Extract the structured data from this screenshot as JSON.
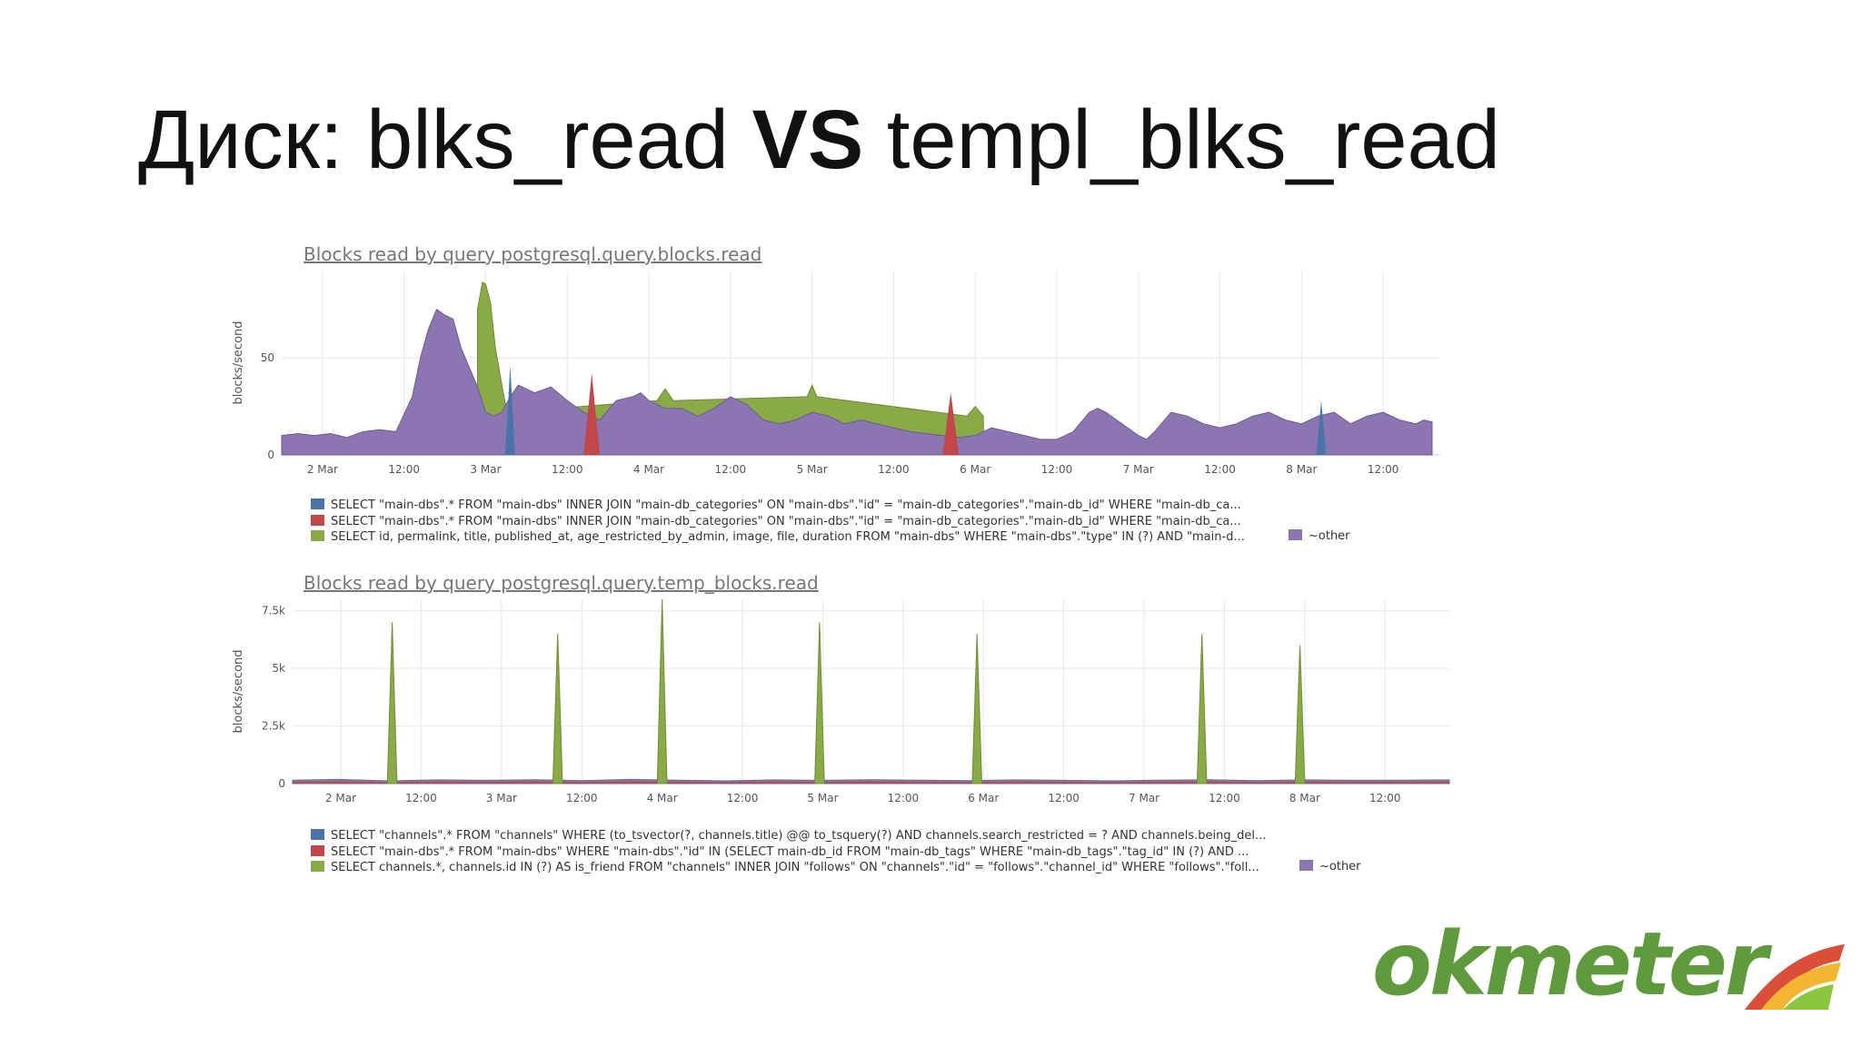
{
  "slide": {
    "title_prefix": "Диск: blks_read ",
    "title_vs": "VS",
    "title_suffix": " templ_blks_read",
    "logo_text": "okmeter"
  },
  "colors": {
    "blue": "#4a73aa",
    "red": "#c04848",
    "green": "#8aaa48",
    "purple": "#8b76b2",
    "grid": "#e8e8ee",
    "logo_green": "#5f9a3c"
  },
  "chart_data": [
    {
      "type": "area",
      "title": "Blocks read by query postgresql.query.blocks.read",
      "ylabel": "blocks/second",
      "xlabel": "",
      "ylim": [
        0,
        95
      ],
      "yticks": [
        0,
        50
      ],
      "ytick_labels": [
        "0",
        "50"
      ],
      "grid": true,
      "x_tick_labels": [
        "2 Mar",
        "12:00",
        "3 Mar",
        "12:00",
        "4 Mar",
        "12:00",
        "5 Mar",
        "12:00",
        "6 Mar",
        "12:00",
        "7 Mar",
        "12:00",
        "8 Mar",
        "12:00"
      ],
      "x_range_days": [
        1.75,
        8.85
      ],
      "legend": [
        {
          "color": "#4a73aa",
          "label": "SELECT \"main-dbs\".* FROM \"main-dbs\" INNER JOIN \"main-db_categories\" ON \"main-dbs\".\"id\" = \"main-db_categories\".\"main-db_id\" WHERE \"main-db_ca..."
        },
        {
          "color": "#c04848",
          "label": "SELECT \"main-dbs\".* FROM \"main-dbs\" INNER JOIN \"main-db_categories\" ON \"main-dbs\".\"id\" = \"main-db_categories\".\"main-db_id\" WHERE \"main-db_ca..."
        },
        {
          "color": "#8aaa48",
          "label": "SELECT id, permalink, title, published_at, age_restricted_by_admin, image, file, duration FROM \"main-dbs\" WHERE \"main-dbs\".\"type\" IN (?) AND \"main-d..."
        }
      ],
      "legend_other": {
        "color": "#8b76b2",
        "label": "~other"
      },
      "other_series": {
        "x": [
          1.75,
          1.85,
          1.95,
          2.05,
          2.15,
          2.25,
          2.35,
          2.45,
          2.55,
          2.6,
          2.65,
          2.7,
          2.75,
          2.8,
          2.85,
          2.9,
          2.95,
          3.0,
          3.05,
          3.1,
          3.15,
          3.2,
          3.3,
          3.4,
          3.5,
          3.6,
          3.7,
          3.8,
          3.9,
          3.95,
          4.0,
          4.1,
          4.2,
          4.25,
          4.3,
          4.4,
          4.5,
          4.6,
          4.7,
          4.8,
          4.9,
          5.0,
          5.1,
          5.2,
          5.3,
          5.4,
          5.5,
          5.6,
          5.7,
          5.8,
          5.9,
          6.0,
          6.1,
          6.2,
          6.3,
          6.4,
          6.5,
          6.6,
          6.7,
          6.75,
          6.8,
          6.9,
          7.0,
          7.05,
          7.1,
          7.2,
          7.3,
          7.4,
          7.5,
          7.6,
          7.7,
          7.8,
          7.9,
          8.0,
          8.1,
          8.2,
          8.3,
          8.4,
          8.5,
          8.6,
          8.7,
          8.75,
          8.8
        ],
        "values": [
          10,
          11,
          10,
          11,
          9,
          12,
          13,
          12,
          30,
          50,
          65,
          75,
          72,
          70,
          55,
          45,
          35,
          22,
          20,
          22,
          30,
          36,
          32,
          35,
          28,
          22,
          18,
          28,
          30,
          32,
          28,
          24,
          24,
          22,
          20,
          24,
          30,
          26,
          18,
          16,
          18,
          22,
          20,
          16,
          18,
          16,
          14,
          12,
          11,
          10,
          9,
          10,
          14,
          12,
          10,
          8,
          8,
          12,
          22,
          24,
          22,
          16,
          10,
          8,
          12,
          22,
          20,
          16,
          14,
          16,
          20,
          22,
          18,
          16,
          20,
          22,
          16,
          20,
          22,
          18,
          16,
          18,
          17
        ]
      },
      "green_series": {
        "x": [
          2.95,
          2.98,
          3.0,
          3.03,
          3.06,
          3.1,
          3.13,
          4.05,
          4.1,
          4.15,
          4.97,
          5.0,
          5.03,
          5.95,
          6.0,
          6.05
        ],
        "values": [
          75,
          89,
          88,
          78,
          55,
          36,
          22,
          28,
          34,
          28,
          30,
          36,
          30,
          20,
          25,
          20
        ]
      },
      "red_spikes": [
        {
          "x": 3.65,
          "peak": 42
        },
        {
          "x": 5.85,
          "peak": 32
        }
      ],
      "blue_spikes": [
        {
          "x": 3.15,
          "peak": 46
        },
        {
          "x": 8.12,
          "peak": 28
        }
      ]
    },
    {
      "type": "area",
      "title": "Blocks read by query postgresql.query.temp_blocks.read",
      "ylabel": "blocks/second",
      "xlabel": "",
      "ylim": [
        0,
        8000
      ],
      "yticks": [
        0,
        2500,
        5000,
        7500
      ],
      "ytick_labels": [
        "0",
        "2.5k",
        "5k",
        "7.5k"
      ],
      "grid": true,
      "x_tick_labels": [
        "2 Mar",
        "12:00",
        "3 Mar",
        "12:00",
        "4 Mar",
        "12:00",
        "5 Mar",
        "12:00",
        "6 Mar",
        "12:00",
        "7 Mar",
        "12:00",
        "8 Mar",
        "12:00"
      ],
      "x_range_days": [
        1.7,
        8.9
      ],
      "legend": [
        {
          "color": "#4a73aa",
          "label": "SELECT \"channels\".* FROM \"channels\" WHERE (to_tsvector(?, channels.title) @@ to_tsquery(?) AND channels.search_restricted = ? AND channels.being_del..."
        },
        {
          "color": "#c04848",
          "label": "SELECT \"main-dbs\".* FROM \"main-dbs\" WHERE \"main-dbs\".\"id\" IN (SELECT main-db_id FROM \"main-db_tags\" WHERE \"main-db_tags\".\"tag_id\" IN (?) AND ..."
        },
        {
          "color": "#8aaa48",
          "label": "SELECT channels.*, channels.id IN (?) AS is_friend FROM \"channels\" INNER JOIN \"follows\" ON \"channels\".\"id\" = \"follows\".\"channel_id\" WHERE \"follows\".\"foll..."
        }
      ],
      "legend_other": {
        "color": "#8b76b2",
        "label": "~other"
      },
      "base_series": {
        "x": [
          1.7,
          2.0,
          2.3,
          2.6,
          2.9,
          3.2,
          3.5,
          3.8,
          4.1,
          4.4,
          4.7,
          5.0,
          5.3,
          5.6,
          5.9,
          6.2,
          6.5,
          6.8,
          7.1,
          7.4,
          7.7,
          8.0,
          8.3,
          8.6,
          8.9
        ],
        "values": [
          150,
          180,
          120,
          160,
          140,
          170,
          130,
          180,
          150,
          120,
          160,
          140,
          170,
          150,
          130,
          160,
          140,
          120,
          150,
          170,
          130,
          160,
          140,
          150,
          160
        ]
      },
      "green_spikes": [
        {
          "x": 2.32,
          "peak": 7000
        },
        {
          "x": 3.35,
          "peak": 6500
        },
        {
          "x": 4.0,
          "peak": 8000
        },
        {
          "x": 4.98,
          "peak": 7000
        },
        {
          "x": 5.96,
          "peak": 6500
        },
        {
          "x": 7.36,
          "peak": 6500
        },
        {
          "x": 7.97,
          "peak": 6000
        }
      ]
    }
  ]
}
